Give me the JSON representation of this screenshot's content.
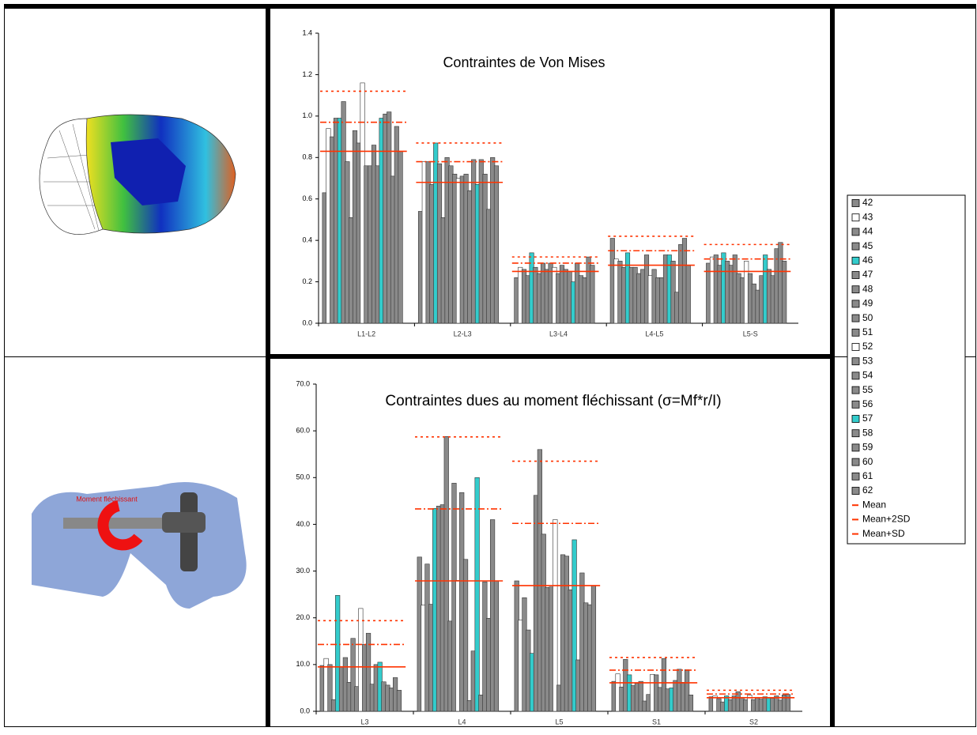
{
  "chart_data": [
    {
      "type": "bar",
      "title": "Contraintes de Von Mises",
      "categories": [
        "L1-L2",
        "L2-L3",
        "L3-L4",
        "L4-L5",
        "L5-S"
      ],
      "ylim": [
        0,
        1.4
      ],
      "yticks": [
        {
          "value": 0,
          "label": "0.0"
        },
        {
          "value": 0.2,
          "label": "0.2"
        },
        {
          "value": 0.4,
          "label": "0.4"
        },
        {
          "value": 0.6,
          "label": "0.6"
        },
        {
          "value": 0.8,
          "label": "0.8"
        },
        {
          "value": 1,
          "label": "1.0"
        },
        {
          "value": 1.2,
          "label": "1.2"
        },
        {
          "value": 1.4,
          "label": "1.4"
        }
      ],
      "series": [
        {
          "values": [
            0.63,
            0.54,
            0.22,
            0.41,
            0.29
          ]
        },
        {
          "values": [
            0.94,
            0.78,
            0.27,
            0.31,
            0.32
          ]
        },
        {
          "values": [
            0.9,
            0.78,
            0.26,
            0.3,
            0.33
          ]
        },
        {
          "values": [
            0.99,
            0.67,
            0.23,
            0.27,
            0.28
          ]
        },
        {
          "values": [
            0.99,
            0.87,
            0.34,
            0.34,
            0.34
          ]
        },
        {
          "values": [
            1.07,
            0.77,
            0.27,
            0.27,
            0.3
          ]
        },
        {
          "values": [
            0.78,
            0.51,
            0.24,
            0.27,
            0.28
          ]
        },
        {
          "values": [
            0.51,
            0.8,
            0.29,
            0.24,
            0.33
          ]
        },
        {
          "values": [
            0.93,
            0.76,
            0.26,
            0.26,
            0.24
          ]
        },
        {
          "values": [
            0.87,
            0.72,
            0.29,
            0.33,
            0.22
          ]
        },
        {
          "values": [
            1.16,
            0.7,
            0.27,
            0.23,
            0.3
          ]
        },
        {
          "values": [
            0.76,
            0.71,
            0.24,
            0.26,
            0.24
          ]
        },
        {
          "values": [
            0.76,
            0.72,
            0.28,
            0.22,
            0.19
          ]
        },
        {
          "values": [
            0.86,
            0.64,
            0.26,
            0.22,
            0.16
          ]
        },
        {
          "values": [
            0.76,
            0.79,
            0.25,
            0.33,
            0.23
          ]
        },
        {
          "values": [
            0.99,
            0.67,
            0.2,
            0.33,
            0.33
          ]
        },
        {
          "values": [
            1.01,
            0.79,
            0.29,
            0.3,
            0.26
          ]
        },
        {
          "values": [
            1.02,
            0.72,
            0.23,
            0.15,
            0.23
          ]
        },
        {
          "values": [
            0.71,
            0.55,
            0.22,
            0.38,
            0.36
          ]
        },
        {
          "values": [
            0.95,
            0.8,
            0.32,
            0.41,
            0.39
          ]
        },
        {
          "values": [
            0.83,
            0.76,
            0.28,
            0.28,
            0.3
          ]
        }
      ],
      "reference_values": [
        [
          0.83,
          0.68,
          0.25,
          0.28,
          0.25
        ],
        [
          1.12,
          0.87,
          0.32,
          0.42,
          0.38
        ],
        [
          0.97,
          0.78,
          0.29,
          0.35,
          0.31
        ]
      ]
    },
    {
      "type": "bar",
      "title": "Contraintes dues au moment fléchissant (σ=Mf*r/I)",
      "categories": [
        "L3",
        "L4",
        "L5",
        "S1",
        "S2"
      ],
      "ylim": [
        0,
        70
      ],
      "yticks": [
        {
          "value": 0,
          "label": "0.0"
        },
        {
          "value": 10,
          "label": "10.0"
        },
        {
          "value": 20,
          "label": "20.0"
        },
        {
          "value": 30,
          "label": "30.0"
        },
        {
          "value": 40,
          "label": "40.0"
        },
        {
          "value": 50,
          "label": "50.0"
        },
        {
          "value": 60,
          "label": "60.0"
        },
        {
          "value": 70,
          "label": "70.0"
        }
      ],
      "series": [
        {
          "values": [
            9.8,
            33.0,
            27.9,
            6.4,
            3.1
          ]
        },
        {
          "values": [
            11.3,
            22.7,
            19.5,
            8.0,
            3.3
          ]
        },
        {
          "values": [
            10.0,
            31.5,
            24.3,
            5.2,
            2.7
          ]
        },
        {
          "values": [
            2.5,
            22.9,
            17.4,
            11.1,
            2.0
          ]
        },
        {
          "values": [
            24.8,
            43.4,
            12.4,
            7.8,
            3.3
          ]
        },
        {
          "values": [
            9.6,
            43.9,
            46.2,
            5.5,
            2.5
          ]
        },
        {
          "values": [
            11.5,
            44.2,
            56.0,
            6.0,
            3.3
          ]
        },
        {
          "values": [
            6.2,
            58.8,
            37.9,
            6.4,
            4.2
          ]
        },
        {
          "values": [
            15.6,
            19.3,
            26.5,
            2.2,
            3.0
          ]
        },
        {
          "values": [
            5.3,
            48.8,
            26.6,
            3.6,
            2.5
          ]
        },
        {
          "values": [
            22.0,
            28.0,
            41.0,
            7.9,
            3.5
          ]
        },
        {
          "values": [
            14.3,
            46.8,
            5.6,
            7.8,
            2.5
          ]
        },
        {
          "values": [
            16.7,
            32.5,
            33.5,
            5.1,
            3.0
          ]
        },
        {
          "values": [
            5.8,
            2.3,
            33.2,
            11.3,
            2.6
          ]
        },
        {
          "values": [
            10.0,
            12.9,
            26.0,
            4.8,
            3.1
          ]
        },
        {
          "values": [
            10.5,
            50.0,
            36.7,
            5.0,
            3.0
          ]
        },
        {
          "values": [
            6.3,
            3.5,
            11.0,
            6.6,
            2.8
          ]
        },
        {
          "values": [
            5.6,
            27.7,
            29.6,
            9.0,
            3.3
          ]
        },
        {
          "values": [
            5.0,
            19.9,
            23.2,
            6.2,
            2.4
          ]
        },
        {
          "values": [
            7.2,
            41.0,
            22.8,
            8.9,
            3.5
          ]
        },
        {
          "values": [
            4.5,
            27.9,
            26.9,
            3.5,
            3.6
          ]
        }
      ],
      "reference_values": [
        [
          9.5,
          27.9,
          26.9,
          6.1,
          2.9
        ],
        [
          19.4,
          58.7,
          53.5,
          11.5,
          4.5
        ],
        [
          14.3,
          43.3,
          40.2,
          8.8,
          3.7
        ]
      ]
    }
  ],
  "legend": {
    "series": [
      {
        "name": "42",
        "color": "#8a8a8a"
      },
      {
        "name": "43",
        "color": "#ffffff"
      },
      {
        "name": "44",
        "color": "#8a8a8a"
      },
      {
        "name": "45",
        "color": "#8a8a8a"
      },
      {
        "name": "46",
        "color": "#33cccc"
      },
      {
        "name": "47",
        "color": "#8a8a8a"
      },
      {
        "name": "48",
        "color": "#8a8a8a"
      },
      {
        "name": "49",
        "color": "#8a8a8a"
      },
      {
        "name": "50",
        "color": "#8a8a8a"
      },
      {
        "name": "51",
        "color": "#8a8a8a"
      },
      {
        "name": "52",
        "color": "#ffffff"
      },
      {
        "name": "53",
        "color": "#8a8a8a"
      },
      {
        "name": "54",
        "color": "#8a8a8a"
      },
      {
        "name": "55",
        "color": "#8a8a8a"
      },
      {
        "name": "56",
        "color": "#8a8a8a"
      },
      {
        "name": "57",
        "color": "#33cccc"
      },
      {
        "name": "58",
        "color": "#8a8a8a"
      },
      {
        "name": "59",
        "color": "#8a8a8a"
      },
      {
        "name": "60",
        "color": "#8a8a8a"
      },
      {
        "name": "61",
        "color": "#8a8a8a"
      },
      {
        "name": "62",
        "color": "#8a8a8a"
      }
    ],
    "lines": [
      {
        "name": "Mean",
        "color": "#ff3300",
        "dash": "solid"
      },
      {
        "name": "Mean+2SD",
        "color": "#ff3300",
        "dash": "dotted"
      },
      {
        "name": "Mean+SD",
        "color": "#ff3300",
        "dash": "dashdot"
      }
    ]
  },
  "illustration": {
    "label": "Moment fléchissant"
  }
}
